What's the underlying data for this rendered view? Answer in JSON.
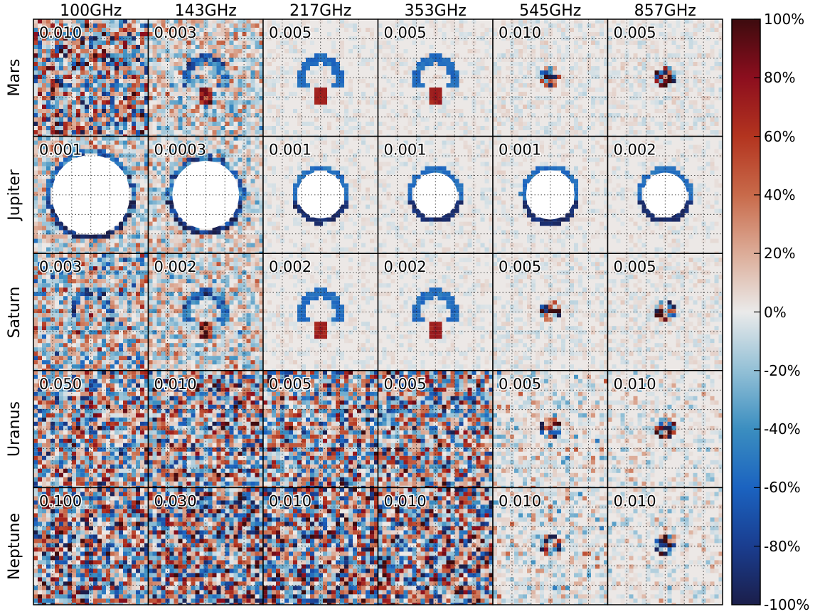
{
  "chart_data": {
    "type": "heatmap",
    "columns": [
      "100GHz",
      "143GHz",
      "217GHz",
      "353GHz",
      "545GHz",
      "857GHz"
    ],
    "rows": [
      "Mars",
      "Jupiter",
      "Saturn",
      "Uranus",
      "Neptune"
    ],
    "panel_scales": [
      [
        "0.010",
        "0.003",
        "0.005",
        "0.005",
        "0.010",
        "0.005"
      ],
      [
        "0.001",
        "0.0003",
        "0.001",
        "0.001",
        "0.001",
        "0.002"
      ],
      [
        "0.003",
        "0.002",
        "0.002",
        "0.002",
        "0.005",
        "0.005"
      ],
      [
        "0.050",
        "0.010",
        "0.005",
        "0.005",
        "0.005",
        "0.010"
      ],
      [
        "0.100",
        "0.030",
        "0.010",
        "0.010",
        "0.010",
        "0.010"
      ]
    ],
    "colorbar": {
      "ticks": [
        "100%",
        "80%",
        "60%",
        "40%",
        "20%",
        "0%",
        "-20%",
        "-40%",
        "-60%",
        "-80%",
        "-100%"
      ],
      "range": [
        -100,
        100
      ],
      "colors": [
        "#1b1e4a",
        "#1a3d8f",
        "#1b63c0",
        "#3b8ec0",
        "#93c0d6",
        "#eaeaea",
        "#dcac98",
        "#c86a4a",
        "#b3341f",
        "#8c0e1e",
        "#3d0b0e"
      ]
    },
    "masked_color": "#ffffff",
    "grid": true
  }
}
